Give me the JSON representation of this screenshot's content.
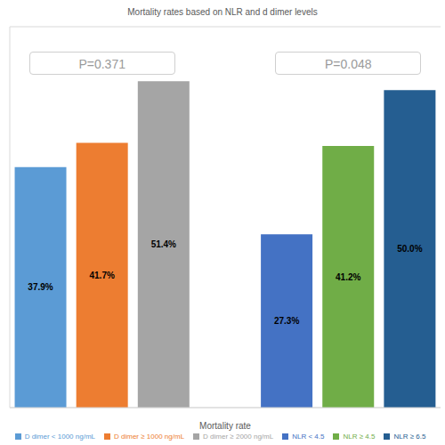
{
  "chart_data": {
    "type": "bar",
    "title": "Mortality rates based on NLR and d dimer levels",
    "x_label": "Mortality rate",
    "categories": [
      null,
      null,
      null,
      null,
      null,
      null,
      null
    ],
    "series": [
      {
        "name": "D dimer < 1000 ng/mL",
        "color": "#5B9BD5",
        "values": [
          37.9,
          null,
          null,
          null,
          null,
          null,
          null
        ],
        "value_labels": [
          "37.9%",
          null,
          null,
          null,
          null,
          null,
          null
        ]
      },
      {
        "name": "D dimer ≥ 1000 ng/mL",
        "color": "#ED7D31",
        "values": [
          null,
          41.7,
          null,
          null,
          null,
          null,
          null
        ],
        "value_labels": [
          null,
          "41.7%",
          null,
          null,
          null,
          null,
          null
        ]
      },
      {
        "name": "D dimer ≥ 2000 ng/mL",
        "color": "#A5A5A5",
        "values": [
          null,
          null,
          51.4,
          null,
          null,
          null,
          null
        ],
        "value_labels": [
          null,
          null,
          "51.4%",
          null,
          null,
          null,
          null
        ]
      },
      {
        "name": "NLR < 4.5",
        "color": "#4472C4",
        "values": [
          null,
          null,
          null,
          null,
          27.3,
          null,
          null
        ],
        "value_labels": [
          null,
          null,
          null,
          null,
          "27.3%",
          null,
          null
        ]
      },
      {
        "name": "NLR ≥ 4.5",
        "color": "#70AD47",
        "values": [
          null,
          null,
          null,
          null,
          null,
          41.2,
          null
        ],
        "value_labels": [
          null,
          null,
          null,
          null,
          null,
          "41.2%",
          null
        ]
      },
      {
        "name": "NLR ≥ 6.5",
        "color": "#255E91",
        "values": [
          null,
          null,
          null,
          null,
          null,
          null,
          50.0
        ],
        "value_labels": [
          null,
          null,
          null,
          null,
          null,
          null,
          "50.0%"
        ]
      }
    ],
    "ylim": [
      0,
      60
    ],
    "yticks": [
      0,
      10,
      20,
      30,
      40,
      50,
      60
    ],
    "grid": true,
    "tick_labels": false,
    "data_labels": true,
    "legend": "bottom",
    "annotations": [
      "P=0.371",
      "P=0.048"
    ]
  }
}
